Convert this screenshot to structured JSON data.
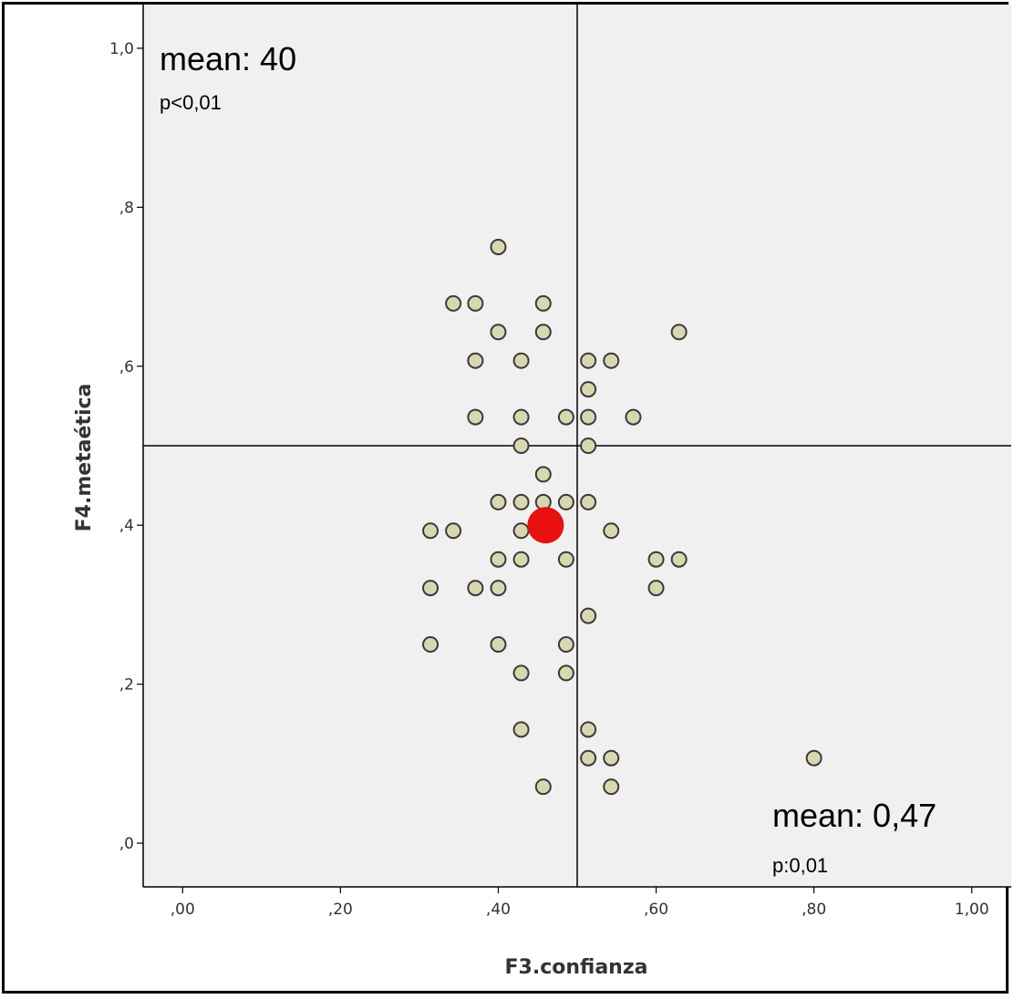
{
  "chart_data": {
    "type": "scatter",
    "xlabel": "F3.confianza",
    "ylabel": "F4.metaética",
    "xlim": [
      -0.05,
      1.05
    ],
    "ylim": [
      -0.055,
      1.055
    ],
    "x_ticks": [
      {
        "value": 0.0,
        "label": ",00"
      },
      {
        "value": 0.2,
        "label": ",20"
      },
      {
        "value": 0.4,
        "label": ",40"
      },
      {
        "value": 0.6,
        "label": ",60"
      },
      {
        "value": 0.8,
        "label": ",80"
      },
      {
        "value": 1.0,
        "label": "1,00"
      }
    ],
    "y_ticks": [
      {
        "value": 0.0,
        "label": ",0"
      },
      {
        "value": 0.2,
        "label": ",2"
      },
      {
        "value": 0.4,
        "label": ",4"
      },
      {
        "value": 0.6,
        "label": ",6"
      },
      {
        "value": 0.8,
        "label": ",8"
      },
      {
        "value": 1.0,
        "label": "1,0"
      }
    ],
    "reference_lines": {
      "x": 0.5,
      "y": 0.5
    },
    "grid": false,
    "colors": {
      "plot_background": "#f0f0f0",
      "point_fill": "#d9d7b0",
      "point_stroke": "#3a3a3a",
      "mean_point": "#e81010",
      "reference_line": "#000000"
    },
    "points": [
      [
        0.4,
        0.75
      ],
      [
        0.343,
        0.679
      ],
      [
        0.371,
        0.679
      ],
      [
        0.457,
        0.679
      ],
      [
        0.4,
        0.643
      ],
      [
        0.457,
        0.643
      ],
      [
        0.629,
        0.643
      ],
      [
        0.371,
        0.607
      ],
      [
        0.429,
        0.607
      ],
      [
        0.514,
        0.607
      ],
      [
        0.543,
        0.607
      ],
      [
        0.514,
        0.571
      ],
      [
        0.371,
        0.536
      ],
      [
        0.429,
        0.536
      ],
      [
        0.486,
        0.536
      ],
      [
        0.514,
        0.536
      ],
      [
        0.571,
        0.536
      ],
      [
        0.429,
        0.5
      ],
      [
        0.514,
        0.5
      ],
      [
        0.457,
        0.464
      ],
      [
        0.4,
        0.429
      ],
      [
        0.429,
        0.429
      ],
      [
        0.457,
        0.429
      ],
      [
        0.486,
        0.429
      ],
      [
        0.514,
        0.429
      ],
      [
        0.314,
        0.393
      ],
      [
        0.343,
        0.393
      ],
      [
        0.429,
        0.393
      ],
      [
        0.543,
        0.393
      ],
      [
        0.4,
        0.357
      ],
      [
        0.429,
        0.357
      ],
      [
        0.486,
        0.357
      ],
      [
        0.6,
        0.357
      ],
      [
        0.629,
        0.357
      ],
      [
        0.314,
        0.321
      ],
      [
        0.371,
        0.321
      ],
      [
        0.4,
        0.321
      ],
      [
        0.6,
        0.321
      ],
      [
        0.514,
        0.286
      ],
      [
        0.314,
        0.25
      ],
      [
        0.4,
        0.25
      ],
      [
        0.486,
        0.25
      ],
      [
        0.429,
        0.214
      ],
      [
        0.486,
        0.214
      ],
      [
        0.429,
        0.143
      ],
      [
        0.514,
        0.143
      ],
      [
        0.514,
        0.107
      ],
      [
        0.543,
        0.107
      ],
      [
        0.8,
        0.107
      ],
      [
        0.457,
        0.071
      ],
      [
        0.543,
        0.071
      ]
    ],
    "mean_point": [
      0.46,
      0.4
    ],
    "annotations": [
      {
        "id": "top-left",
        "big": "mean: 40",
        "small": "p<0,01"
      },
      {
        "id": "bottom-right",
        "big": "mean: 0,47",
        "small": "p:0,01"
      }
    ]
  }
}
